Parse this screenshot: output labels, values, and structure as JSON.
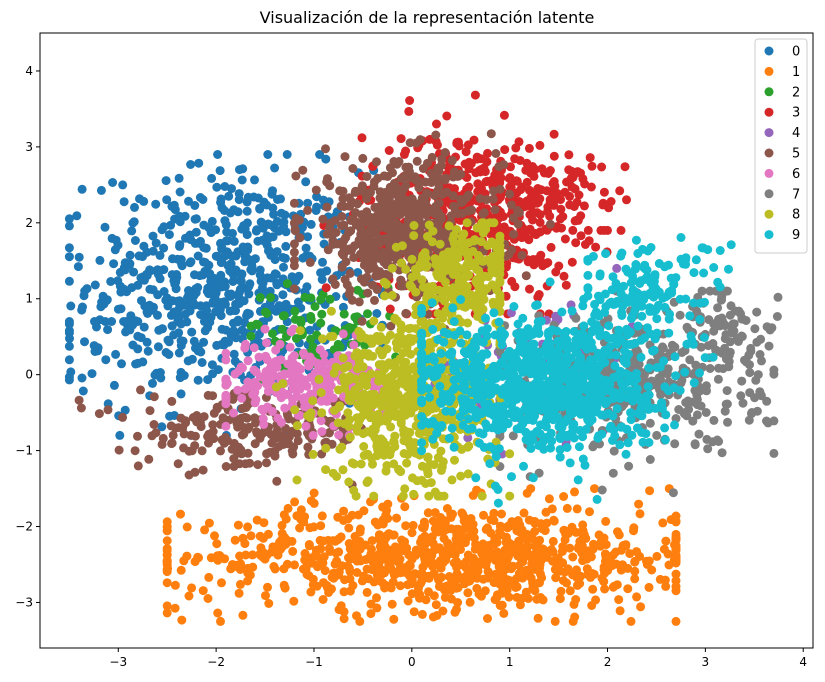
{
  "chart_data": {
    "type": "scatter",
    "title": "Visualización de la representación latente",
    "xlabel": "",
    "ylabel": "",
    "xlim": [
      -3.8,
      4.1
    ],
    "ylim": [
      -3.6,
      4.5
    ],
    "xticks": [
      -3,
      -2,
      -1,
      0,
      1,
      2,
      3,
      4
    ],
    "yticks": [
      -3,
      -2,
      -1,
      0,
      1,
      2,
      3,
      4
    ],
    "xtick_labels": [
      "−3",
      "−2",
      "−1",
      "0",
      "1",
      "2",
      "3",
      "4"
    ],
    "ytick_labels": [
      "−3",
      "−2",
      "−1",
      "0",
      "1",
      "2",
      "3",
      "4"
    ],
    "grid": false,
    "legend_position": "top-right",
    "series": [
      {
        "name": "0",
        "color": "#1f77b4",
        "count": 650,
        "center": [
          -1.9,
          1.2
        ],
        "spread": [
          0.7,
          0.75
        ],
        "bounds": [
          -3.5,
          -0.3,
          -0.8,
          2.9
        ]
      },
      {
        "name": "1",
        "color": "#ff7f0e",
        "count": 900,
        "center": [
          0.4,
          -2.4
        ],
        "spread": [
          1.35,
          0.35
        ],
        "bounds": [
          -2.5,
          2.7,
          -3.25,
          -1.5
        ]
      },
      {
        "name": "2",
        "color": "#2ca02c",
        "count": 80,
        "center": [
          -0.9,
          0.6
        ],
        "spread": [
          0.4,
          0.3
        ],
        "bounds": [
          -2.7,
          0.2,
          -0.6,
          1.2
        ]
      },
      {
        "name": "3",
        "color": "#d62728",
        "count": 500,
        "center": [
          0.6,
          2.1
        ],
        "spread": [
          0.55,
          0.55
        ],
        "bounds": [
          -0.9,
          2.2,
          0.8,
          4.1
        ]
      },
      {
        "name": "4",
        "color": "#9467bd",
        "count": 120,
        "center": [
          1.3,
          0.1
        ],
        "spread": [
          0.6,
          0.45
        ],
        "bounds": [
          0.1,
          2.3,
          -1.3,
          1.4
        ]
      },
      {
        "name": "5",
        "color": "#8c564b",
        "count": 550,
        "center": [
          -0.1,
          1.9
        ],
        "spread": [
          0.5,
          0.45
        ],
        "bounds": [
          -1.2,
          1.5,
          0.6,
          3.2
        ]
      },
      {
        "name": "6",
        "color": "#e377c2",
        "count": 250,
        "center": [
          -1.1,
          -0.1
        ],
        "spread": [
          0.45,
          0.25
        ],
        "bounds": [
          -1.9,
          -0.3,
          -0.8,
          0.6
        ]
      },
      {
        "name": "7",
        "color": "#7f7f7f",
        "count": 380,
        "center": [
          2.2,
          -0.1
        ],
        "spread": [
          0.7,
          0.45
        ],
        "bounds": [
          0.9,
          3.7,
          -1.6,
          1.1
        ]
      },
      {
        "name": "8",
        "color": "#bcbd22",
        "count": 600,
        "center": [
          0.0,
          -0.3
        ],
        "spread": [
          0.45,
          0.55
        ],
        "bounds": [
          -1.4,
          1.0,
          -1.6,
          2.6
        ]
      },
      {
        "name": "9",
        "color": "#17becf",
        "count": 900,
        "center": [
          1.3,
          -0.1
        ],
        "spread": [
          0.6,
          0.45
        ],
        "bounds": [
          0.1,
          3.6,
          -1.9,
          2.1
        ]
      }
    ],
    "extra_clusters": [
      {
        "series": "5",
        "count": 220,
        "center": [
          -1.6,
          -0.75
        ],
        "spread": [
          0.6,
          0.25
        ],
        "bounds": [
          -3.4,
          -0.4,
          -1.45,
          -0.2
        ]
      },
      {
        "series": "0",
        "count": 25,
        "center": [
          -3.2,
          0.3
        ],
        "spread": [
          0.25,
          0.4
        ],
        "bounds": [
          -3.5,
          -2.8,
          -0.8,
          0.7
        ]
      },
      {
        "series": "8",
        "count": 250,
        "center": [
          0.5,
          1.3
        ],
        "spread": [
          0.3,
          0.35
        ],
        "bounds": [
          -0.2,
          0.9,
          0.4,
          2.0
        ]
      },
      {
        "series": "9",
        "count": 150,
        "center": [
          2.4,
          1.1
        ],
        "spread": [
          0.4,
          0.35
        ],
        "bounds": [
          1.8,
          3.6,
          0.4,
          2.1
        ]
      },
      {
        "series": "7",
        "count": 80,
        "center": [
          3.2,
          0.6
        ],
        "spread": [
          0.3,
          0.3
        ],
        "bounds": [
          2.6,
          3.8,
          -0.2,
          1.1
        ]
      },
      {
        "series": "3",
        "count": 60,
        "center": [
          1.6,
          2.4
        ],
        "spread": [
          0.35,
          0.3
        ],
        "bounds": [
          1.0,
          2.2,
          1.9,
          3.1
        ]
      }
    ]
  }
}
